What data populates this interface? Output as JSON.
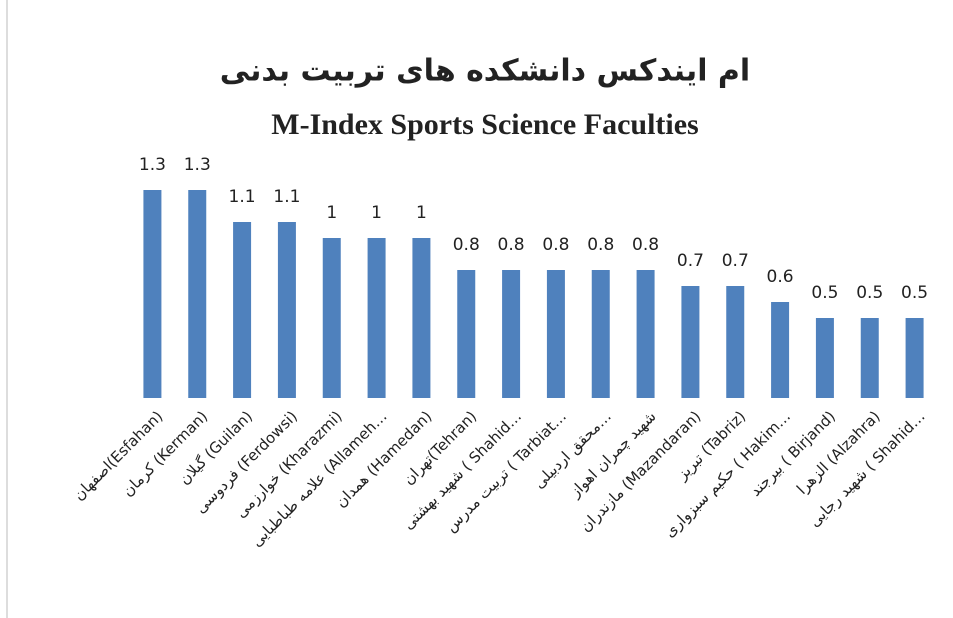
{
  "chart_data": {
    "type": "bar",
    "title": "ام ایندکس دانشکده های تربیت بدنی",
    "subtitle": "M-Index Sports Science Faculties",
    "categories": [
      "اصفهان(Esfahan)",
      "کرمان (Kerman)",
      "گیلان (Guilan)",
      "فردوسی (Ferdowsi)",
      "خوارزمی (Kharazmi)",
      "علامه طباطبایی (Allameh…",
      "همدان (Hamedan)",
      "تهران(Tehran)",
      "شهید بهشتی ( Shahid…",
      "تربیت مدرس ( Tarbiat…",
      "محقق اردبیلی…",
      "شهید چمران اهواز",
      "مازندران (Mazandaran)",
      "تبریز (Tabriz)",
      "حکیم سبزواری ( Hakim…",
      "بیرجند ( Birjand)",
      "الزهرا (Alzahra)",
      "شهید رجایی ( Shahid…"
    ],
    "values": [
      1.3,
      1.3,
      1.1,
      1.1,
      1,
      1,
      1,
      0.8,
      0.8,
      0.8,
      0.8,
      0.8,
      0.7,
      0.7,
      0.6,
      0.5,
      0.5,
      0.5
    ],
    "color": "#4f81bd"
  }
}
